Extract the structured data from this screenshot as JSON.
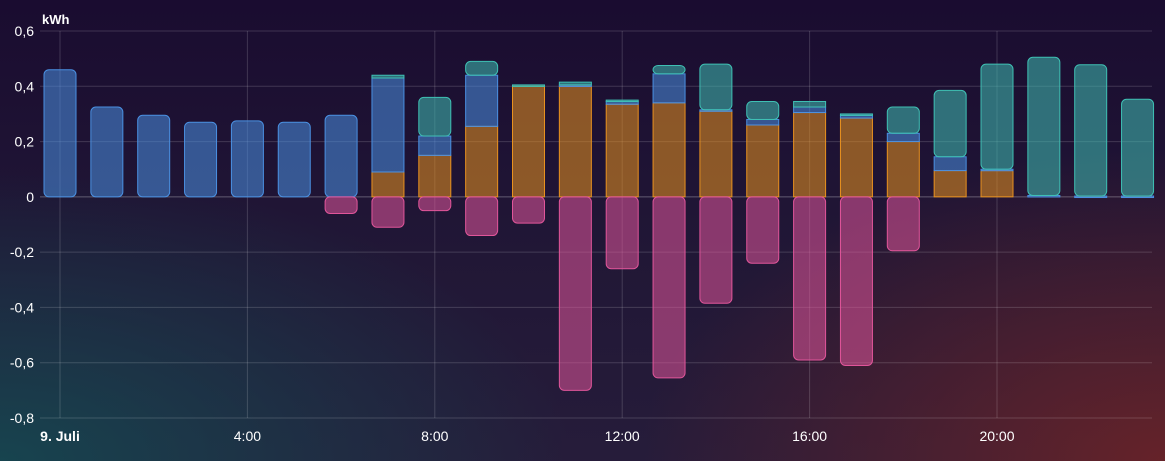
{
  "chart_data": {
    "type": "bar",
    "stacked": true,
    "ylabel": "kWh",
    "ylim": [
      -0.8,
      0.6
    ],
    "y_ticks": [
      "0,6",
      "0,4",
      "0,2",
      "0",
      "-0,2",
      "-0,4",
      "-0,6",
      "-0,8"
    ],
    "x_tick_labels": [
      "9. Juli",
      "4:00",
      "8:00",
      "12:00",
      "16:00",
      "20:00"
    ],
    "grid": true,
    "categories": [
      "0",
      "1",
      "2",
      "3",
      "4",
      "5",
      "6",
      "7",
      "8",
      "9",
      "10",
      "11",
      "12",
      "13",
      "14",
      "15",
      "16",
      "17",
      "18",
      "19",
      "20",
      "21",
      "22",
      "23"
    ],
    "series": [
      {
        "color": "#e8911f",
        "values": [
          0,
          0,
          0,
          0,
          0,
          0,
          0,
          0.09,
          0.15,
          0.255,
          0.4,
          0.4,
          0.335,
          0.34,
          0.31,
          0.26,
          0.305,
          0.285,
          0.2,
          0.095,
          0.095,
          0,
          0,
          0
        ]
      },
      {
        "color": "#4a90e2",
        "values": [
          0.46,
          0.325,
          0.295,
          0.27,
          0.275,
          0.27,
          0.295,
          0.34,
          0.07,
          0.185,
          0,
          0.005,
          0.01,
          0.105,
          0.005,
          0.02,
          0.02,
          0.01,
          0.03,
          0.05,
          0.005,
          0.005,
          0.003,
          0.003
        ]
      },
      {
        "color": "#3fc0b4",
        "values": [
          0,
          0,
          0,
          0,
          0,
          0,
          0,
          0.01,
          0.14,
          0.05,
          0.005,
          0.01,
          0.005,
          0.03,
          0.165,
          0.065,
          0.02,
          0.005,
          0.095,
          0.24,
          0.38,
          0.5,
          0.475,
          0.35
        ]
      },
      {
        "color": "#e0559a",
        "values": [
          0,
          0,
          0,
          0,
          0,
          0,
          -0.06,
          -0.11,
          -0.05,
          -0.14,
          -0.095,
          -0.7,
          -0.26,
          -0.655,
          -0.385,
          -0.24,
          -0.59,
          -0.61,
          -0.195,
          0,
          0,
          0,
          0,
          0
        ]
      }
    ]
  }
}
